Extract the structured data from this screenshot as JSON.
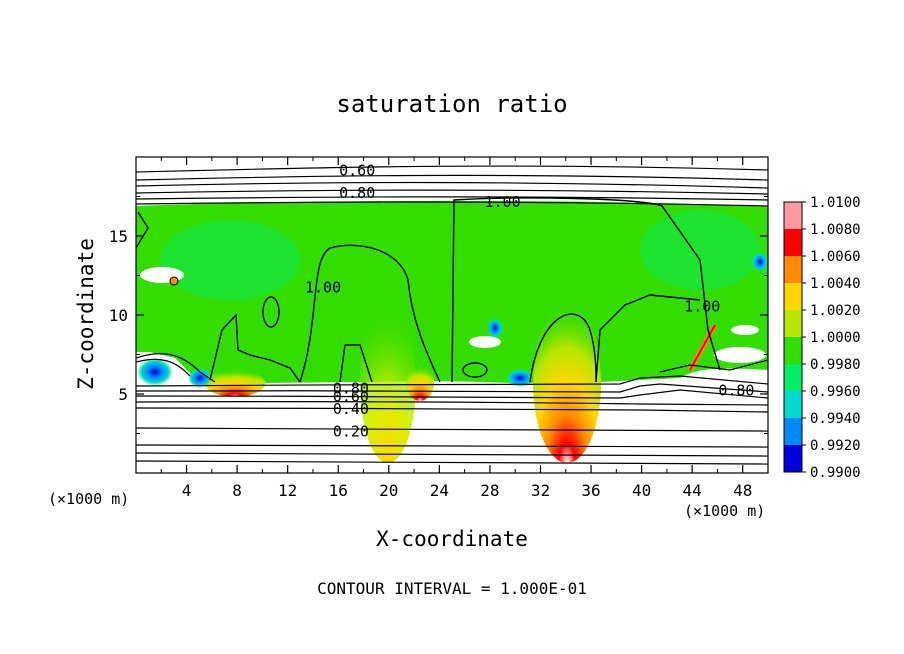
{
  "chart_data": {
    "type": "heatmap",
    "title": "saturation ratio",
    "xlabel": "X-coordinate",
    "ylabel": "Z-coordinate",
    "x_unit_left": "(×1000 m)",
    "x_unit_right": "(×1000 m)",
    "footer": "CONTOUR INTERVAL = 1.000E-01",
    "xlim": [
      0,
      50
    ],
    "ylim": [
      0,
      20
    ],
    "x_ticks": [
      4,
      8,
      12,
      16,
      20,
      24,
      28,
      32,
      36,
      40,
      44,
      48
    ],
    "y_ticks": [
      5,
      10,
      15
    ],
    "colorbar": {
      "levels": [
        "1.0100",
        "1.0080",
        "1.0060",
        "1.0040",
        "1.0020",
        "1.0000",
        "0.9980",
        "0.9960",
        "0.9940",
        "0.9920",
        "0.9900"
      ],
      "colors": [
        "#ff9aa2",
        "#ff0000",
        "#ff8c00",
        "#ffd700",
        "#b8e600",
        "#33dd00",
        "#00ee66",
        "#00d8d0",
        "#0088ff",
        "#0000dd",
        "#7700aa"
      ]
    },
    "contour_labels": [
      {
        "text": "0.60",
        "x": 17.5,
        "z": 19.2
      },
      {
        "text": "0.80",
        "x": 17.5,
        "z": 17.8
      },
      {
        "text": "1.00",
        "x": 29.0,
        "z": 17.2
      },
      {
        "text": "1.00",
        "x": 14.8,
        "z": 11.8
      },
      {
        "text": "1.00",
        "x": 44.8,
        "z": 10.6
      },
      {
        "text": "0.80",
        "x": 17.0,
        "z": 5.4
      },
      {
        "text": "0.60",
        "x": 17.0,
        "z": 4.9
      },
      {
        "text": "0.40",
        "x": 17.0,
        "z": 4.1
      },
      {
        "text": "0.20",
        "x": 17.0,
        "z": 2.7
      },
      {
        "text": "0.80",
        "x": 47.5,
        "z": 5.3
      }
    ]
  }
}
